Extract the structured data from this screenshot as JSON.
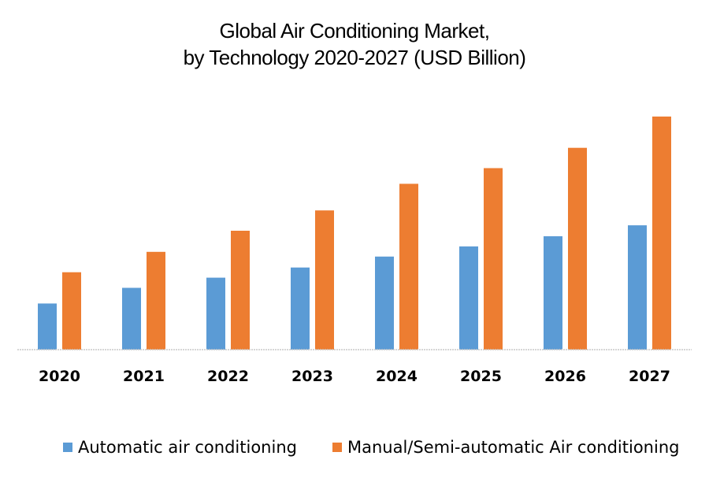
{
  "chart_data": {
    "type": "bar",
    "title": "Global Air Conditioning Market,",
    "subtitle": "by Technology 2020-2027 (USD Billion)",
    "xlabel": "",
    "ylabel": "",
    "categories": [
      "2020",
      "2021",
      "2022",
      "2023",
      "2024",
      "2025",
      "2026",
      "2027"
    ],
    "series": [
      {
        "name": "Automatic air conditioning",
        "color": "#5B9BD5",
        "values": [
          29.5,
          39.5,
          46,
          52.5,
          59.5,
          66,
          72.5,
          79.5
        ]
      },
      {
        "name": "Manual/Semi-automatic Air conditioning",
        "color": "#ED7D31",
        "values": [
          49.5,
          62.5,
          76,
          89,
          106,
          116,
          129,
          149
        ]
      }
    ],
    "ylim": [
      0,
      150
    ],
    "y_axis_visible": false,
    "grid": false,
    "legend": "bottom",
    "values_note": "No y-axis scale shown; values are relative estimates from bar heights"
  }
}
